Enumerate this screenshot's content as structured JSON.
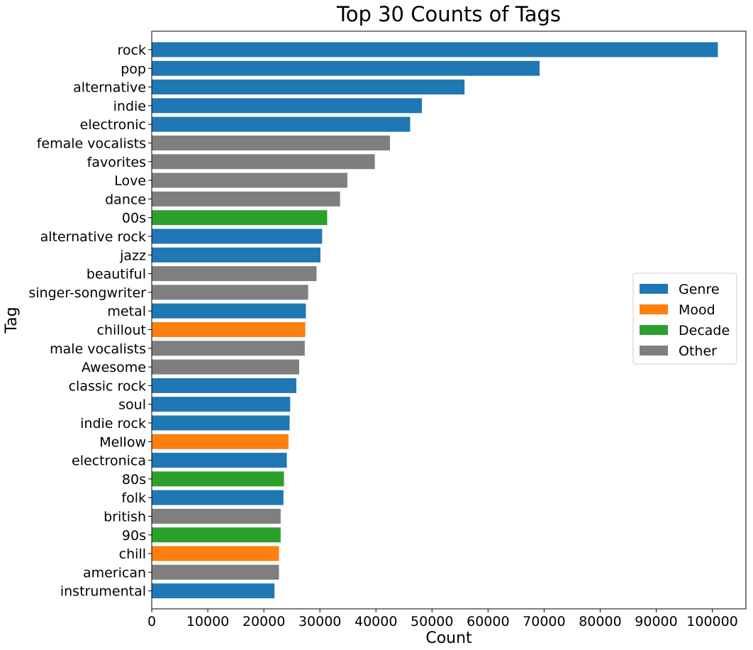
{
  "chart_data": {
    "type": "bar",
    "orientation": "horizontal",
    "title": "Top 30 Counts of Tags",
    "xlabel": "Count",
    "ylabel": "Tag",
    "xlim": [
      0,
      106000
    ],
    "xticks": [
      0,
      10000,
      20000,
      30000,
      40000,
      50000,
      60000,
      70000,
      80000,
      90000,
      100000
    ],
    "grid": false,
    "legend_position": "center-right",
    "legend": [
      {
        "name": "Genre",
        "color": "#1f77b4"
      },
      {
        "name": "Mood",
        "color": "#ff7f0e"
      },
      {
        "name": "Decade",
        "color": "#2ca02c"
      },
      {
        "name": "Other",
        "color": "#7f7f7f"
      }
    ],
    "bars": [
      {
        "label": "rock",
        "value": 101000,
        "group": "Genre"
      },
      {
        "label": "pop",
        "value": 69200,
        "group": "Genre"
      },
      {
        "label": "alternative",
        "value": 55800,
        "group": "Genre"
      },
      {
        "label": "indie",
        "value": 48200,
        "group": "Genre"
      },
      {
        "label": "electronic",
        "value": 46100,
        "group": "Genre"
      },
      {
        "label": "female vocalists",
        "value": 42500,
        "group": "Other"
      },
      {
        "label": "favorites",
        "value": 39800,
        "group": "Other"
      },
      {
        "label": "Love",
        "value": 34900,
        "group": "Other"
      },
      {
        "label": "dance",
        "value": 33600,
        "group": "Other"
      },
      {
        "label": "00s",
        "value": 31300,
        "group": "Decade"
      },
      {
        "label": "alternative rock",
        "value": 30400,
        "group": "Genre"
      },
      {
        "label": "jazz",
        "value": 30100,
        "group": "Genre"
      },
      {
        "label": "beautiful",
        "value": 29400,
        "group": "Other"
      },
      {
        "label": "singer-songwriter",
        "value": 27900,
        "group": "Other"
      },
      {
        "label": "metal",
        "value": 27500,
        "group": "Genre"
      },
      {
        "label": "chillout",
        "value": 27400,
        "group": "Mood"
      },
      {
        "label": "male vocalists",
        "value": 27300,
        "group": "Other"
      },
      {
        "label": "Awesome",
        "value": 26300,
        "group": "Other"
      },
      {
        "label": "classic rock",
        "value": 25800,
        "group": "Genre"
      },
      {
        "label": "soul",
        "value": 24700,
        "group": "Genre"
      },
      {
        "label": "indie rock",
        "value": 24600,
        "group": "Genre"
      },
      {
        "label": "Mellow",
        "value": 24400,
        "group": "Mood"
      },
      {
        "label": "electronica",
        "value": 24100,
        "group": "Genre"
      },
      {
        "label": "80s",
        "value": 23600,
        "group": "Decade"
      },
      {
        "label": "folk",
        "value": 23500,
        "group": "Genre"
      },
      {
        "label": "british",
        "value": 23000,
        "group": "Other"
      },
      {
        "label": "90s",
        "value": 23000,
        "group": "Decade"
      },
      {
        "label": "chill",
        "value": 22700,
        "group": "Mood"
      },
      {
        "label": "american",
        "value": 22700,
        "group": "Other"
      },
      {
        "label": "instrumental",
        "value": 21900,
        "group": "Genre"
      }
    ]
  }
}
